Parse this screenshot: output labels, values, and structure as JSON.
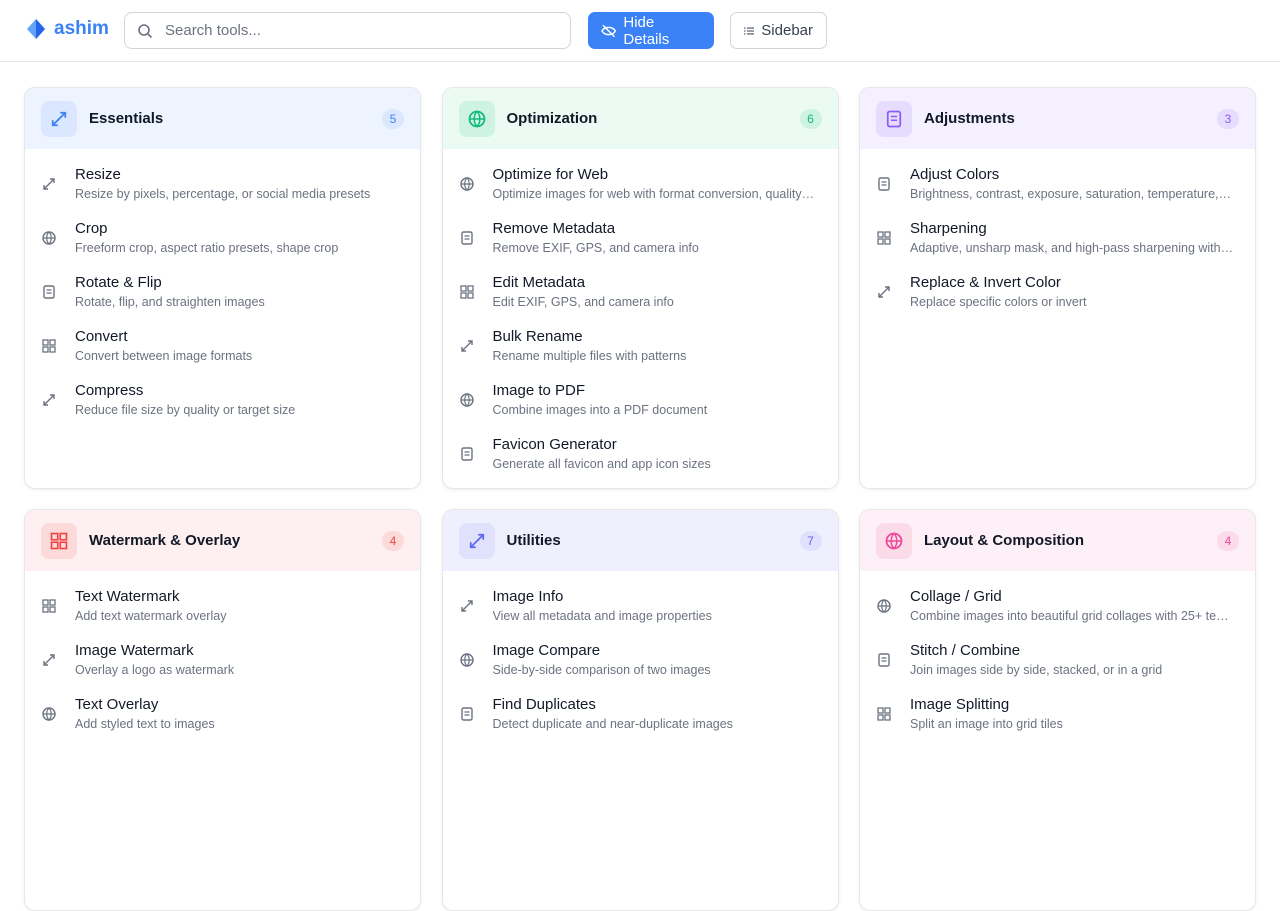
{
  "header": {
    "brand": "ashim",
    "search_placeholder": "Search tools...",
    "hide_details": "Hide Details",
    "sidebar": "Sidebar"
  },
  "sections": [
    {
      "title": "Essentials",
      "count": 5,
      "tools": [
        {
          "name": "Resize",
          "desc": "Resize by pixels, percentage, or social media presets"
        },
        {
          "name": "Crop",
          "desc": "Freeform crop, aspect ratio presets, shape crop"
        },
        {
          "name": "Rotate & Flip",
          "desc": "Rotate, flip, and straighten images"
        },
        {
          "name": "Convert",
          "desc": "Convert between image formats"
        },
        {
          "name": "Compress",
          "desc": "Reduce file size by quality or target size"
        }
      ]
    },
    {
      "title": "Optimization",
      "count": 6,
      "tools": [
        {
          "name": "Optimize for Web",
          "desc": "Optimize images for web with format conversion, quality…"
        },
        {
          "name": "Remove Metadata",
          "desc": "Remove EXIF, GPS, and camera info"
        },
        {
          "name": "Edit Metadata",
          "desc": "Edit EXIF, GPS, and camera info"
        },
        {
          "name": "Bulk Rename",
          "desc": "Rename multiple files with patterns"
        },
        {
          "name": "Image to PDF",
          "desc": "Combine images into a PDF document"
        },
        {
          "name": "Favicon Generator",
          "desc": "Generate all favicon and app icon sizes"
        }
      ]
    },
    {
      "title": "Adjustments",
      "count": 3,
      "tools": [
        {
          "name": "Adjust Colors",
          "desc": "Brightness, contrast, exposure, saturation, temperature,…"
        },
        {
          "name": "Sharpening",
          "desc": "Adaptive, unsharp mask, and high-pass sharpening with…"
        },
        {
          "name": "Replace & Invert Color",
          "desc": "Replace specific colors or invert"
        }
      ]
    },
    {
      "title": "Watermark & Overlay",
      "count": 4,
      "tools": [
        {
          "name": "Text Watermark",
          "desc": "Add text watermark overlay"
        },
        {
          "name": "Image Watermark",
          "desc": "Overlay a logo as watermark"
        },
        {
          "name": "Text Overlay",
          "desc": "Add styled text to images"
        }
      ]
    },
    {
      "title": "Utilities",
      "count": 7,
      "tools": [
        {
          "name": "Image Info",
          "desc": "View all metadata and image properties"
        },
        {
          "name": "Image Compare",
          "desc": "Side-by-side comparison of two images"
        },
        {
          "name": "Find Duplicates",
          "desc": "Detect duplicate and near-duplicate images"
        }
      ]
    },
    {
      "title": "Layout & Composition",
      "count": 4,
      "tools": [
        {
          "name": "Collage / Grid",
          "desc": "Combine images into beautiful grid collages with 25+ te…"
        },
        {
          "name": "Stitch / Combine",
          "desc": "Join images side by side, stacked, or in a grid"
        },
        {
          "name": "Image Splitting",
          "desc": "Split an image into grid tiles"
        }
      ]
    }
  ]
}
